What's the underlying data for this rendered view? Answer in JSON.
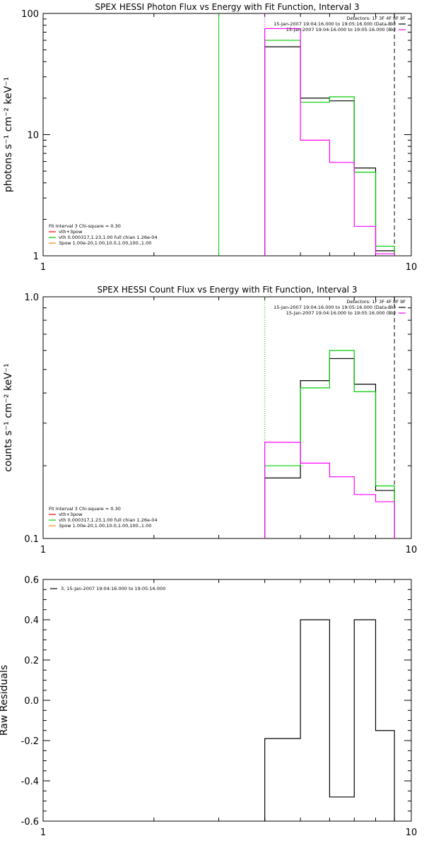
{
  "chart_data": [
    {
      "type": "line",
      "step": true,
      "title": "SPEX HESSI Photon Flux vs Energy with Fit Function, Interval 3",
      "xlabel": "",
      "ylabel": "photons s⁻¹ cm⁻² keV⁻¹",
      "xscale": "log",
      "yscale": "log",
      "xlim": [
        1,
        10
      ],
      "ylim": [
        1,
        100
      ],
      "x_tick_labels": [
        "1",
        "10"
      ],
      "y_tick_labels": [
        "1",
        "10",
        "100"
      ],
      "legend_top_right": [
        {
          "text": "Detectors: 1F 3F 4F 8F 9F",
          "color": ""
        },
        {
          "text": "15-Jan-2007 19:04:16.000 to 19:05:16.000 (Data-Bk)",
          "color": "#000000"
        },
        {
          "text": "15-Jan-2007 19:04:16.000 to 19:05:16.000 (Bk)",
          "color": "#ff00ff"
        }
      ],
      "legend_bottom_left": [
        {
          "text": "Fit Interval 3   Chi-square = 0.30",
          "color": ""
        },
        {
          "text": "vth+3pow",
          "color": "#ff0000"
        },
        {
          "text": "vth 0.000317,1.23,1.00  full chian 1.26e-04",
          "color": "#00cc00"
        },
        {
          "text": "3pow 1.00e-20,1.00,10.0,1.00,100.,1.00",
          "color": "#ff8800"
        }
      ],
      "vlines": [
        {
          "x": 3.0,
          "color": "#00cc00",
          "style": "solid"
        },
        {
          "x": 4.0,
          "color": "#ff00ff",
          "style": "dotted"
        },
        {
          "x": 9.0,
          "color": "#000000",
          "style": "dashed"
        }
      ],
      "bin_edges": [
        4,
        5,
        6,
        7,
        8,
        9
      ],
      "series": [
        {
          "color": "#000000",
          "values": [
            53,
            20,
            19,
            5.3,
            1.1
          ]
        },
        {
          "color": "#00cc00",
          "values": [
            60,
            18.5,
            20.5,
            4.9,
            1.2
          ]
        },
        {
          "color": "#ff00ff",
          "values": [
            75,
            9.0,
            5.9,
            1.75,
            1.04
          ]
        }
      ]
    },
    {
      "type": "line",
      "step": true,
      "title": "SPEX HESSI Count Flux vs Energy with Fit Function, Interval 3",
      "xlabel": "",
      "ylabel": "counts s⁻¹ cm⁻² keV⁻¹",
      "xscale": "log",
      "yscale": "log",
      "xlim": [
        1,
        10
      ],
      "ylim": [
        0.1,
        1.0
      ],
      "x_tick_labels": [
        "1",
        "10"
      ],
      "y_tick_labels": [
        "0.1",
        "1.0"
      ],
      "legend_top_right": [
        {
          "text": "Detectors: 1F 3F 4F 8F 9F",
          "color": ""
        },
        {
          "text": "15-Jan-2007 19:04:16.000 to 19:05:16.000 (Data-Bk)",
          "color": "#000000"
        },
        {
          "text": "15-Jan-2007 19:04:16.000 to 19:05:16.000 (Bk)",
          "color": "#ff00ff"
        }
      ],
      "legend_bottom_left": [
        {
          "text": "Fit Interval 3   Chi-square = 0.30",
          "color": ""
        },
        {
          "text": "vth+3pow",
          "color": "#ff0000"
        },
        {
          "text": "vth 0.000317,1.23,1.00  full chian 1.26e-04",
          "color": "#00cc00"
        },
        {
          "text": "3pow 1.00e-20,1.00,10.0,1.00,100.,1.00",
          "color": "#ff8800"
        }
      ],
      "vlines": [
        {
          "x": 4.0,
          "color": "#00cc00",
          "style": "dotted"
        },
        {
          "x": 9.0,
          "color": "#000000",
          "style": "dashed"
        }
      ],
      "bin_edges": [
        4,
        5,
        6,
        7,
        8,
        9
      ],
      "series": [
        {
          "color": "#000000",
          "values": [
            0.178,
            0.45,
            0.555,
            0.435,
            0.158
          ]
        },
        {
          "color": "#00cc00",
          "values": [
            0.2,
            0.42,
            0.6,
            0.405,
            0.165
          ]
        },
        {
          "color": "#ff00ff",
          "values": [
            0.25,
            0.205,
            0.18,
            0.152,
            0.142
          ]
        }
      ]
    },
    {
      "type": "line",
      "step": true,
      "title": "",
      "xlabel": "",
      "ylabel": "Raw Residuals",
      "xscale": "log",
      "yscale": "linear",
      "xlim": [
        1,
        10
      ],
      "ylim": [
        -0.6,
        0.6
      ],
      "x_tick_labels": [
        "1",
        "10"
      ],
      "y_tick_labels": [
        "-0.6",
        "-0.4",
        "-0.2",
        "0.0",
        "0.2",
        "0.4",
        "0.6"
      ],
      "legend_top_left": [
        {
          "text": "3, 15-Jan-2007 19:04:16.000 to 19:05:16.000",
          "color": "#000000"
        }
      ],
      "bin_edges": [
        4,
        5,
        6,
        7,
        8,
        9
      ],
      "series": [
        {
          "color": "#000000",
          "values": [
            -0.19,
            0.4,
            -0.48,
            0.4,
            -0.15
          ]
        }
      ]
    }
  ]
}
